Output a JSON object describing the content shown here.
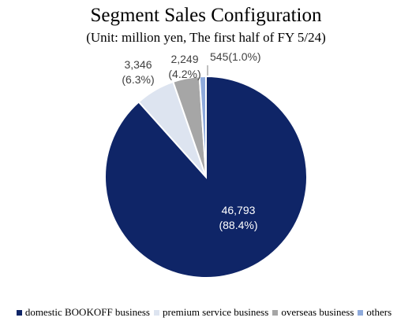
{
  "chart_data": {
    "type": "pie",
    "title": "Segment Sales Configuration",
    "subtitle": "(Unit: million yen, The first half of FY 5/24)",
    "slices": [
      {
        "name": "domestic BOOKOFF business",
        "value": 46793,
        "value_label": "46,793",
        "percent_label": "(88.4%)",
        "color": "#0f2567",
        "label_color": "#ffffff"
      },
      {
        "name": "premium service business",
        "value": 3346,
        "value_label": "3,346",
        "percent_label": "(6.3%)",
        "color": "#dde4f0",
        "label_color": "#404040"
      },
      {
        "name": "overseas business",
        "value": 2249,
        "value_label": "2,249",
        "percent_label": "(4.2%)",
        "color": "#a6a6a6",
        "label_color": "#404040"
      },
      {
        "name": "others",
        "value": 545,
        "value_label": "545",
        "percent_label": "(1.0%)",
        "color": "#8eaadb",
        "label_color": "#404040"
      }
    ],
    "legend_position": "bottom"
  }
}
